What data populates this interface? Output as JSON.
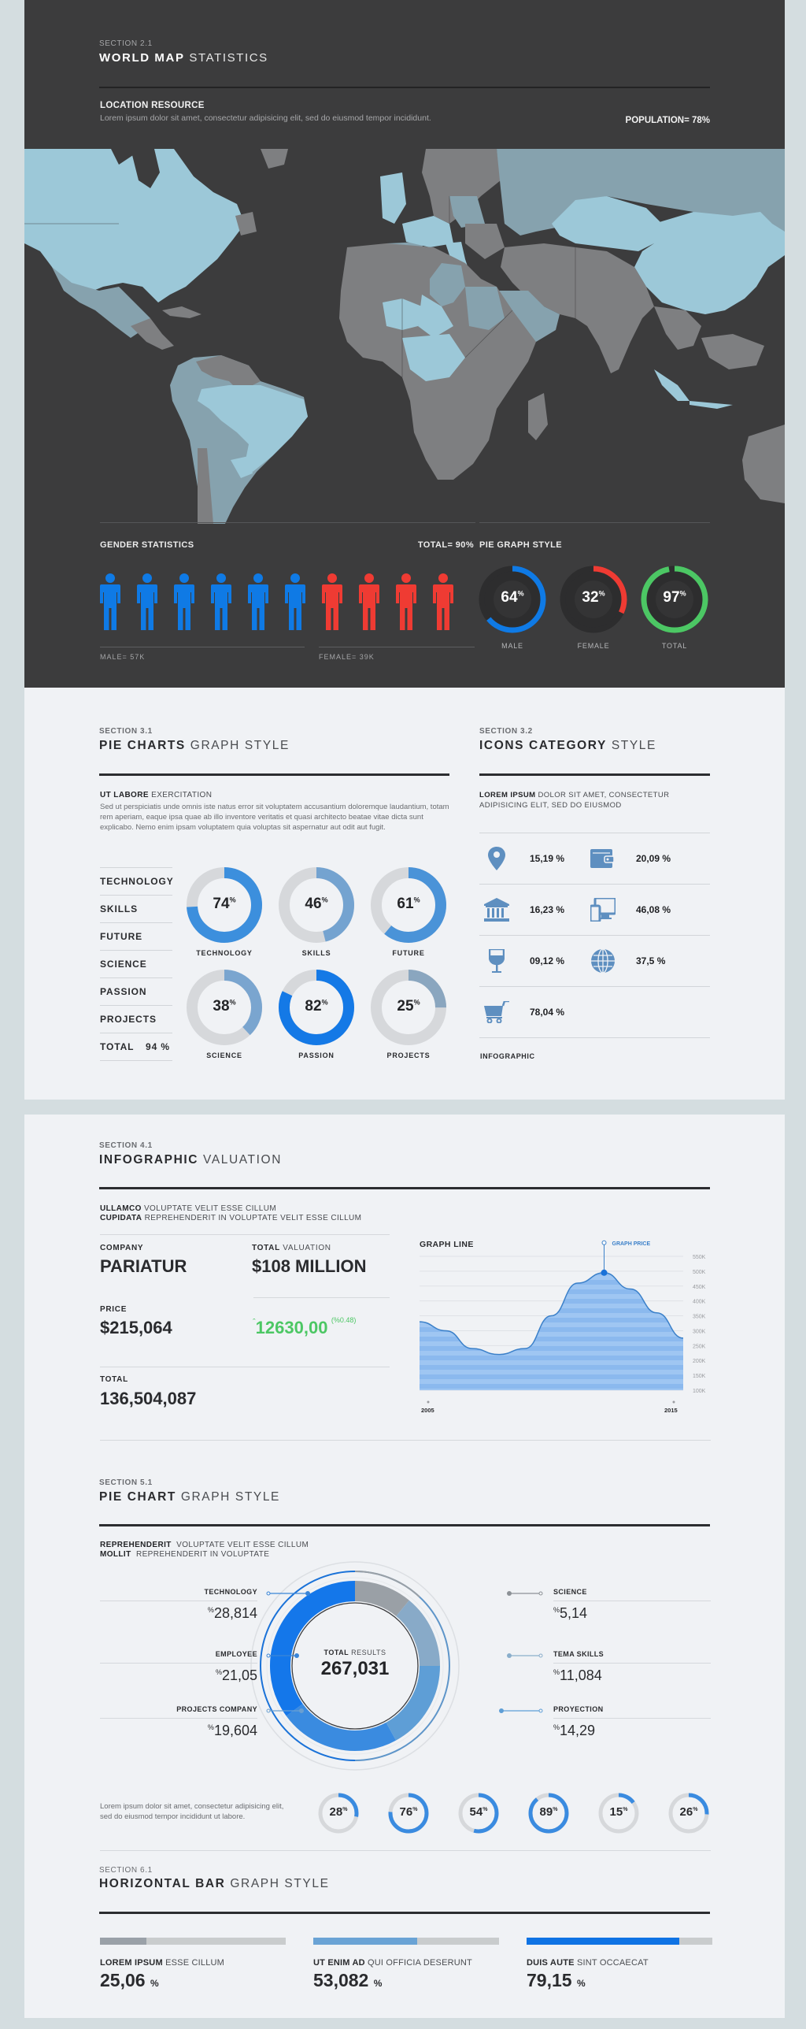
{
  "world_map": {
    "section_number": "SECTION 2.1",
    "title_bold": "WORLD MAP",
    "title_rest": "STATISTICS",
    "location_title": "LOCATION RESOURCE",
    "location_desc": "Lorem ipsum dolor sit amet, consectetur adipisicing elit, sed do eiusmod tempor incididunt.",
    "population": "POPULATION= 78%",
    "colors": {
      "highlight": "#9cc8d8",
      "medium": "#86a2ae",
      "muted": "#7e7f81",
      "ocean": "#3c3c3d"
    }
  },
  "gender": {
    "title": "GENDER STATISTICS",
    "total": "TOTAL= 90%",
    "male_count": 6,
    "female_count": 4,
    "male_label": "MALE= 57K",
    "female_label": "FEMALE= 39K",
    "male_color": "#0f7ae5",
    "female_color": "#ef3b33"
  },
  "pie_graph_style": {
    "title": "PIE GRAPH STYLE",
    "items": [
      {
        "label": "MALE",
        "value": "64",
        "unit": "%",
        "color": "#0f7ae5"
      },
      {
        "label": "FEMALE",
        "value": "32",
        "unit": "%",
        "color": "#ef3b33"
      },
      {
        "label": "TOTAL",
        "value": "97",
        "unit": "%",
        "color": "#4cc764"
      }
    ]
  },
  "pie_charts": {
    "section_number": "SECTION 3.1",
    "title_bold": "PIE CHARTS",
    "title_rest": "GRAPH STYLE",
    "subhead_bold": "UT LABORE",
    "subhead_rest": "EXERCITATION",
    "paragraph": "Sed ut perspiciatis unde omnis iste natus error sit voluptatem accusantium doloremque laudantium, totam rem aperiam, eaque ipsa quae ab illo inventore veritatis et quasi architecto beatae vitae dicta sunt explicabo. Nemo enim ipsam voluptatem quia voluptas sit aspernatur aut odit aut fugit.",
    "list": [
      "TECHNOLOGY",
      "SKILLS",
      "FUTURE",
      "SCIENCE",
      "PASSION",
      "PROJECTS"
    ],
    "total_label": "TOTAL",
    "total_value": "94 %",
    "donuts": [
      {
        "label": "TECHNOLOGY",
        "value": "74",
        "unit": "%",
        "color": "#3c8fdd"
      },
      {
        "label": "SKILLS",
        "value": "46",
        "unit": "%",
        "color": "#74a3d0"
      },
      {
        "label": "FUTURE",
        "value": "61",
        "unit": "%",
        "color": "#4a93d8"
      },
      {
        "label": "SCIENCE",
        "value": "38",
        "unit": "%",
        "color": "#7aa5cf"
      },
      {
        "label": "PASSION",
        "value": "82",
        "unit": "%",
        "color": "#1479e6"
      },
      {
        "label": "PROJECTS",
        "value": "25",
        "unit": "%",
        "color": "#8aa6bf"
      }
    ]
  },
  "icons_category": {
    "section_number": "SECTION 3.2",
    "title_bold": "ICONS CATEGORY",
    "title_rest": "STYLE",
    "desc_bold": "LOREM IPSUM",
    "desc_rest": "DOLOR SIT AMET, CONSECTETUR ADIPISICING ELIT, SED DO EIUSMOD",
    "items": [
      {
        "icon": "map-pin-icon",
        "value": "15,19 %"
      },
      {
        "icon": "wallet-icon",
        "value": "20,09 %"
      },
      {
        "icon": "bank-icon",
        "value": "16,23 %"
      },
      {
        "icon": "devices-icon",
        "value": "46,08 %"
      },
      {
        "icon": "wine-glass-icon",
        "value": "09,12 %"
      },
      {
        "icon": "globe-icon",
        "value": "37,5 %"
      },
      {
        "icon": "shopping-cart-icon",
        "value": "78,04 %"
      }
    ],
    "footer": "INFOGRAPHIC",
    "icon_color": "#5e8fc0"
  },
  "valuation": {
    "section_number": "SECTION 4.1",
    "title_bold": "INFOGRAPHIC",
    "title_rest": "VALUATION",
    "line1_bold": "ULLAMCO",
    "line1_rest": "VOLUPTATE VELIT ESSE CILLUM",
    "line2_bold": "CUPIDATA",
    "line2_rest": "REPREHENDERIT IN VOLUPTATE VELIT ESSE CILLUM",
    "company_label": "COMPANY",
    "company_value": "PARIATUR",
    "total_valuation_bold": "TOTAL",
    "total_valuation_rest": "VALUATION",
    "total_valuation_value": "$108 MILLION",
    "price_label": "PRICE",
    "price_value": "$215,064",
    "change_value": "12630,00",
    "change_pct": "(%0.48)",
    "change_color": "#4cc764",
    "total_label": "TOTAL",
    "total_value": "136,504,087"
  },
  "chart_data": {
    "type": "area",
    "title": "GRAPH LINE",
    "annotation": "GRAPH PRICE",
    "x": [
      "2005",
      "2006",
      "2007",
      "2008",
      "2009",
      "2010",
      "2011",
      "2012",
      "2013",
      "2014",
      "2015"
    ],
    "values": [
      330,
      300,
      240,
      220,
      240,
      350,
      460,
      495,
      440,
      360,
      275
    ],
    "xlabel": "",
    "ylabel": "",
    "x_tick_labels": [
      "2005",
      "2015"
    ],
    "y_tick_labels": [
      "550K",
      "500K",
      "450K",
      "400K",
      "350K",
      "300K",
      "250K",
      "200K",
      "150K",
      "100K"
    ],
    "ylim": [
      100,
      550
    ],
    "grid": true,
    "peak": {
      "x": "2012",
      "value": 495
    }
  },
  "pie_chart": {
    "section_number": "SECTION 5.1",
    "title_bold": "PIE CHART",
    "title_rest": "GRAPH STYLE",
    "line1_bold": "REPREHENDERIT",
    "line1_rest": "VOLUPTATE VELIT ESSE CILLUM",
    "line2_bold": "MOLLIT",
    "line2_rest": "REPREHENDERIT IN VOLUPTATE",
    "center_bold": "TOTAL",
    "center_rest": "RESULTS",
    "center_value": "267,031",
    "left": [
      {
        "label": "TECHNOLOGY",
        "value": "28,814",
        "unit": "%"
      },
      {
        "label": "EMPLOYEE",
        "value": "21,05",
        "unit": "%"
      },
      {
        "label": "PROJECTS COMPANY",
        "value": "19,604",
        "unit": "%"
      }
    ],
    "right": [
      {
        "label": "SCIENCE",
        "value": "5,14",
        "unit": "%"
      },
      {
        "label": "TEMA SKILLS",
        "value": "11,084",
        "unit": "%"
      },
      {
        "label": "PROYECTION",
        "value": "14,29",
        "unit": "%"
      }
    ],
    "paragraph": "Lorem ipsum dolor sit amet, consectetur adipisicing elit, sed do eiusmod tempor incididunt ut labore.",
    "small_rings": [
      "28",
      "76",
      "54",
      "89",
      "15",
      "26"
    ],
    "small_ring_unit": "%"
  },
  "horizontal_bar": {
    "section_number": "SECTION 6.1",
    "title_bold": "HORIZONTAL BAR",
    "title_rest": "GRAPH STYLE",
    "bars": [
      {
        "label_bold": "LOREM IPSUM",
        "label_rest": "ESSE CILLUM",
        "value": "25,06",
        "unit": "%",
        "fill": 25,
        "color": "#9aa1a8"
      },
      {
        "label_bold": "UT ENIM AD",
        "label_rest": "QUI OFFICIA DESERUNT",
        "value": "53,082",
        "unit": "%",
        "fill": 56,
        "color": "#6aa3d5"
      },
      {
        "label_bold": "DUIS AUTE",
        "label_rest": "SINT OCCAECAT",
        "value": "79,15",
        "unit": "%",
        "fill": 82,
        "color": "#0f73e4"
      }
    ]
  }
}
